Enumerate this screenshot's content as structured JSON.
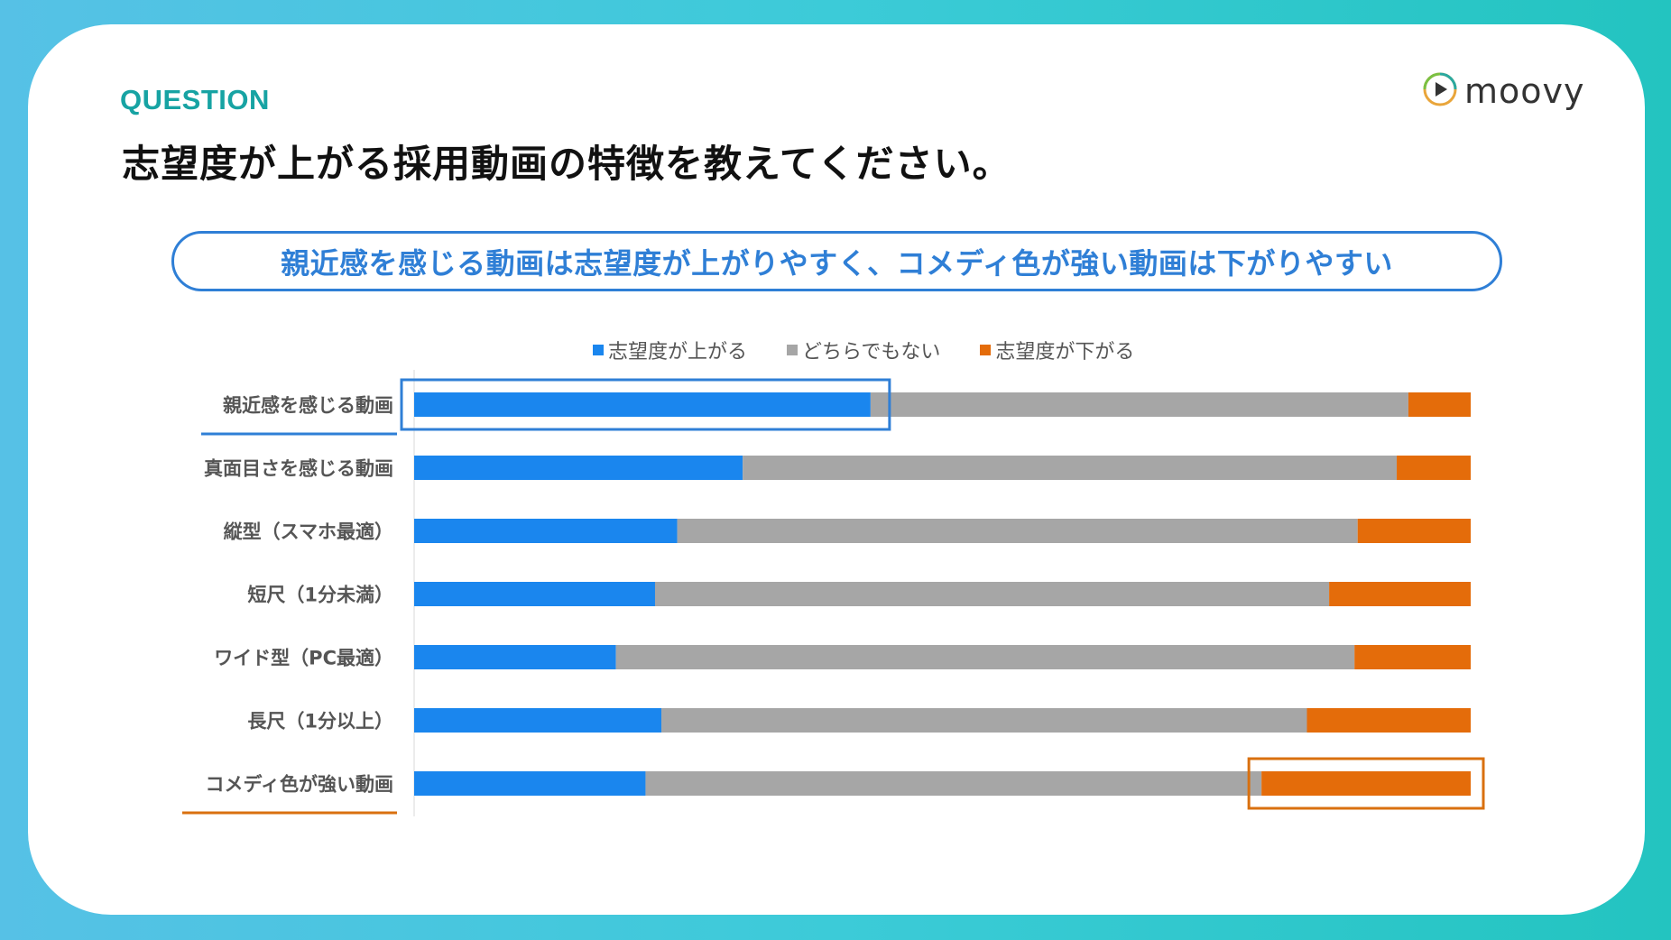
{
  "header": {
    "tag": "QUESTION",
    "title": "志望度が上がる採用動画の特徴を教えてください。",
    "logo_text": "moovy",
    "logo_icon": "play-circle-icon"
  },
  "callout": {
    "text": "親近感を感じる動画は志望度が上がりやすく、コメディ色が強い動画は下がりやすい"
  },
  "colors": {
    "up": "#1a86ee",
    "neutral": "#a6a6a6",
    "down": "#e46c0a",
    "highlight_blue": "#2f7fd6",
    "highlight_orange": "#d9700f"
  },
  "chart_data": {
    "type": "bar",
    "orientation": "horizontal",
    "stacked": "100%",
    "categories": [
      "親近感を感じる動画",
      "真面目さを感じる動画",
      "縦型（スマホ最適）",
      "短尺（1分未満）",
      "ワイド型（PC最適）",
      "長尺（1分以上）",
      "コメディ色が強い動画"
    ],
    "series": [
      {
        "name": "志望度が上がる",
        "values": [
          43.2,
          31.1,
          24.9,
          22.8,
          19.1,
          23.4,
          21.9
        ]
      },
      {
        "name": "どちらでもない",
        "values": [
          50.9,
          61.9,
          64.4,
          63.8,
          69.9,
          61.1,
          58.3
        ]
      },
      {
        "name": "志望度が下がる",
        "values": [
          5.9,
          7.0,
          10.7,
          13.4,
          11.0,
          15.5,
          19.8
        ]
      }
    ],
    "xlim": [
      0,
      100
    ],
    "grid": false,
    "legend_position": "top",
    "highlighted": [
      {
        "category": "親近感を感じる動画",
        "series": "志望度が上がる"
      },
      {
        "category": "コメディ色が強い動画",
        "series": "志望度が下がる"
      }
    ]
  }
}
